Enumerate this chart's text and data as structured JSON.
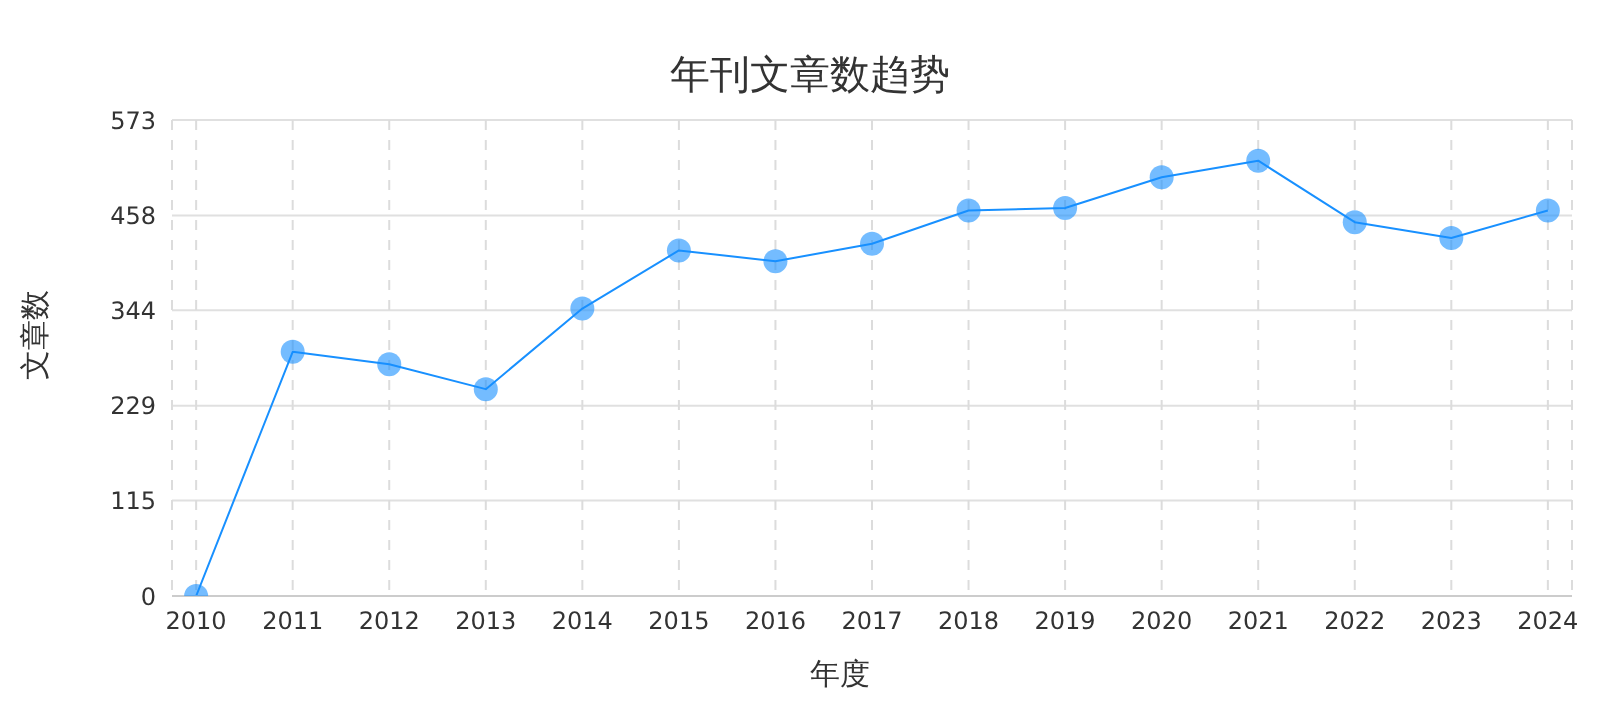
{
  "chart_data": {
    "type": "line",
    "title": "年刊文章数趋势",
    "xlabel": "年度",
    "ylabel": "文章数",
    "categories": [
      "2010",
      "2011",
      "2012",
      "2013",
      "2014",
      "2015",
      "2016",
      "2017",
      "2018",
      "2019",
      "2020",
      "2021",
      "2022",
      "2023",
      "2024"
    ],
    "series": [
      {
        "color": "#1890ff",
        "values": [
          0,
          294,
          279,
          249,
          346,
          416,
          403,
          424,
          464,
          467,
          504,
          524,
          450,
          431,
          464
        ]
      }
    ],
    "ylim": [
      0,
      573
    ],
    "yticks": [
      0,
      115,
      229,
      344,
      458,
      573
    ],
    "grid": true,
    "marker": "circle",
    "line_style": "solid"
  }
}
